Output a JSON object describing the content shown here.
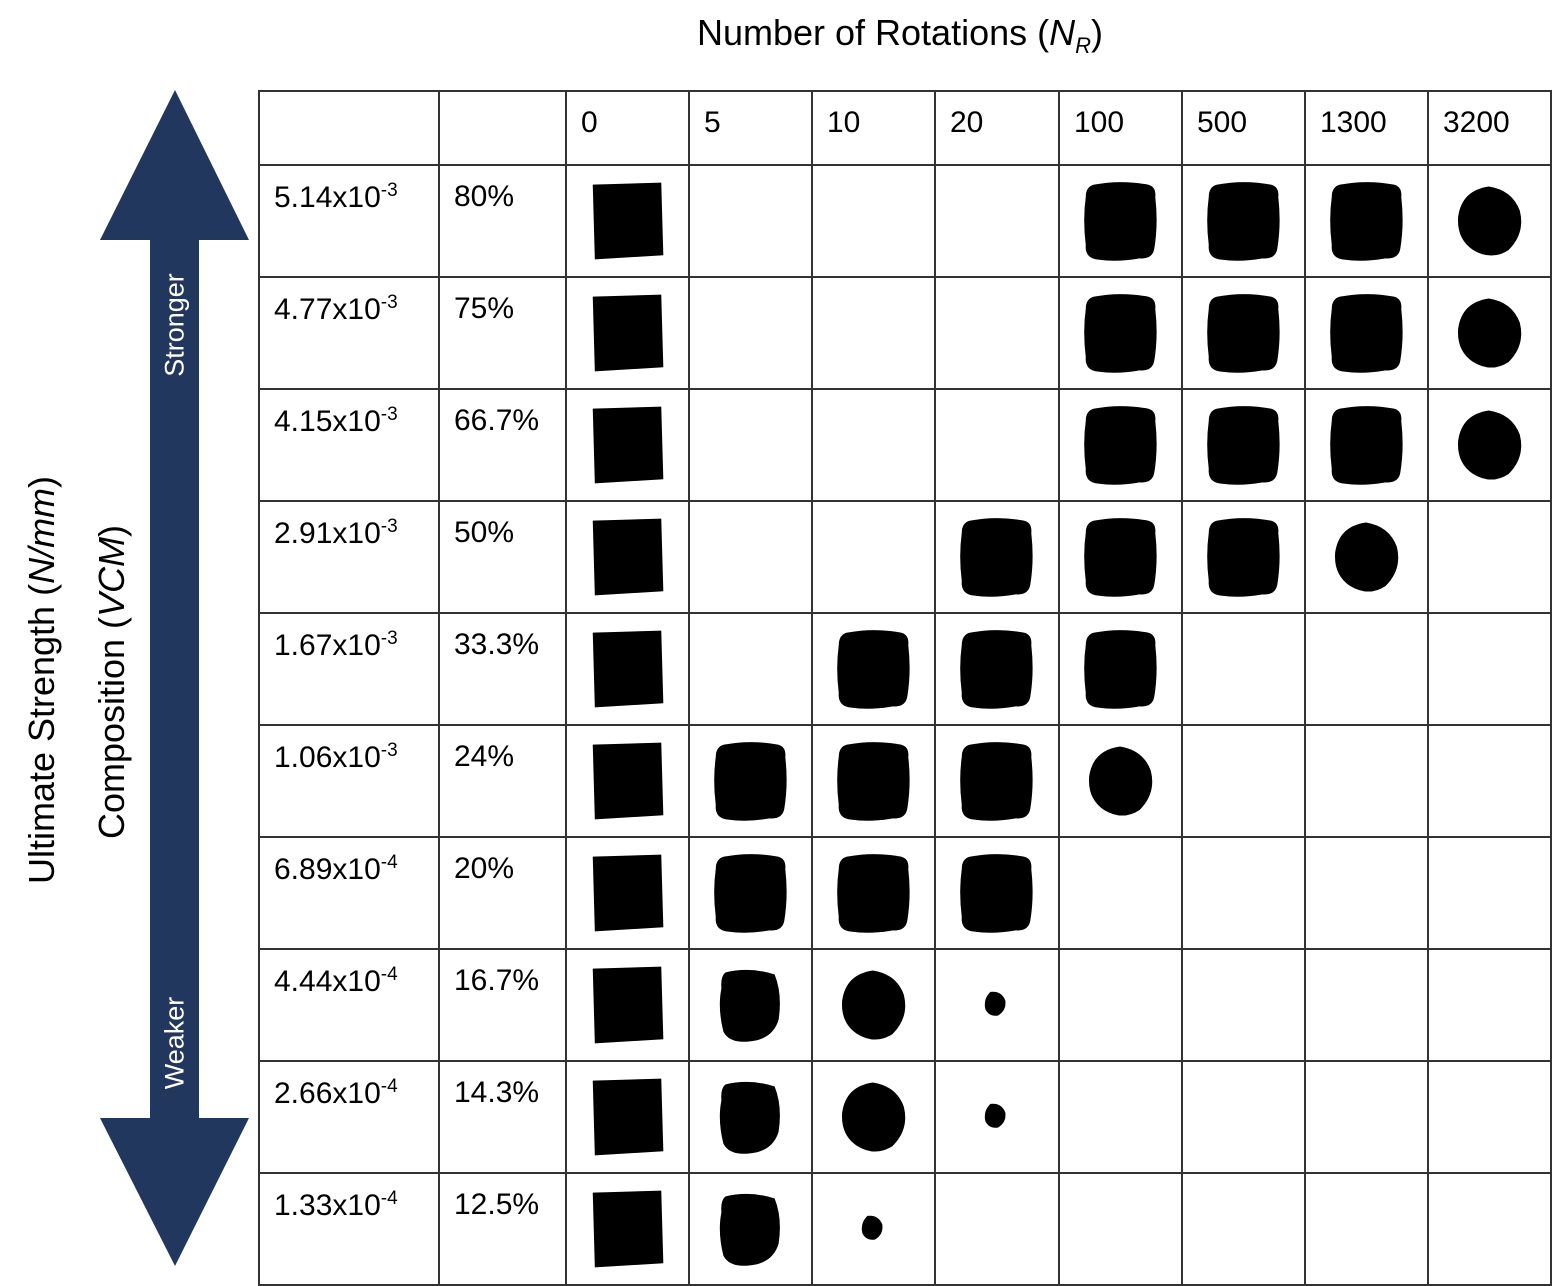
{
  "title": {
    "text": "Number of Rotations (",
    "var": "N",
    "sub": "R",
    "close": ")"
  },
  "axis_left": {
    "strength_text": "Ultimate Strength (",
    "strength_unit": "N/mm",
    "strength_close": ")",
    "composition_text": "Composition (",
    "composition_unit": "VCM",
    "composition_close": ")"
  },
  "arrow": {
    "color": "#22375E",
    "top_label": "Stronger",
    "bottom_label": "Weaker"
  },
  "columns": [
    "0",
    "5",
    "10",
    "20",
    "100",
    "500",
    "1300",
    "3200"
  ],
  "rows": [
    {
      "strength_base": "5.14x10",
      "strength_exp": "-3",
      "composition": "80%",
      "shapes": [
        "square",
        "",
        "",
        "",
        "rounded",
        "rounded",
        "rounded",
        "round"
      ]
    },
    {
      "strength_base": "4.77x10",
      "strength_exp": "-3",
      "composition": "75%",
      "shapes": [
        "square",
        "",
        "",
        "",
        "rounded",
        "rounded",
        "rounded",
        "round"
      ]
    },
    {
      "strength_base": "4.15x10",
      "strength_exp": "-3",
      "composition": "66.7%",
      "shapes": [
        "square",
        "",
        "",
        "",
        "rounded",
        "rounded",
        "rounded",
        "round"
      ]
    },
    {
      "strength_base": "2.91x10",
      "strength_exp": "-3",
      "composition": "50%",
      "shapes": [
        "square",
        "",
        "",
        "rounded",
        "rounded",
        "rounded",
        "round",
        ""
      ]
    },
    {
      "strength_base": "1.67x10",
      "strength_exp": "-3",
      "composition": "33.3%",
      "shapes": [
        "square",
        "",
        "rounded",
        "rounded",
        "rounded",
        "",
        "",
        ""
      ]
    },
    {
      "strength_base": "1.06x10",
      "strength_exp": "-3",
      "composition": "24%",
      "shapes": [
        "square",
        "rounded",
        "rounded",
        "rounded",
        "round",
        "",
        "",
        ""
      ]
    },
    {
      "strength_base": "6.89x10",
      "strength_exp": "-4",
      "composition": "20%",
      "shapes": [
        "square",
        "rounded",
        "rounded",
        "rounded",
        "",
        "",
        "",
        ""
      ]
    },
    {
      "strength_base": "4.44x10",
      "strength_exp": "-4",
      "composition": "16.7%",
      "shapes": [
        "square",
        "irregular",
        "round",
        "fragment",
        "",
        "",
        "",
        ""
      ]
    },
    {
      "strength_base": "2.66x10",
      "strength_exp": "-4",
      "composition": "14.3%",
      "shapes": [
        "square",
        "irregular",
        "round",
        "fragment",
        "",
        "",
        "",
        ""
      ]
    },
    {
      "strength_base": "1.33x10",
      "strength_exp": "-4",
      "composition": "12.5%",
      "shapes": [
        "square",
        "irregular",
        "fragment",
        "",
        "",
        "",
        "",
        ""
      ]
    }
  ]
}
